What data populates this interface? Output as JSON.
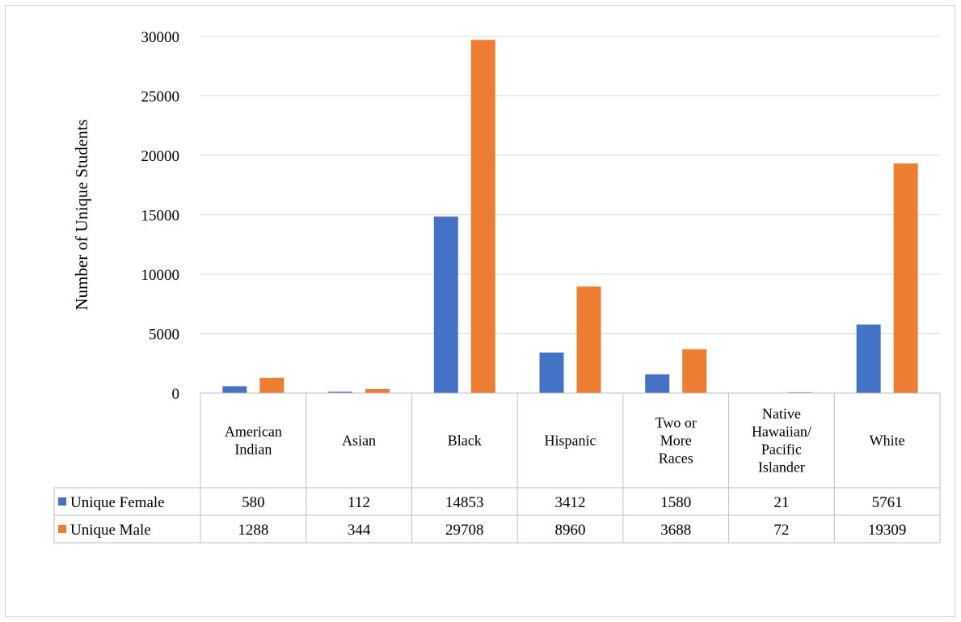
{
  "chart_data": {
    "type": "bar",
    "ylabel": "Number of Unique Students",
    "ylim": [
      0,
      30000
    ],
    "yticks": [
      "0",
      "5000",
      "10000",
      "15000",
      "20000",
      "25000",
      "30000"
    ],
    "grid": true,
    "legend_placement": "data-table",
    "categories": [
      [
        "American",
        "Indian"
      ],
      [
        "Asian"
      ],
      [
        "Black"
      ],
      [
        "Hispanic"
      ],
      [
        "Two or",
        "More",
        "Races"
      ],
      [
        "Native",
        "Hawaiian/",
        "Pacific",
        "Islander"
      ],
      [
        "White"
      ]
    ],
    "series": [
      {
        "name": "Unique Female",
        "color": "#4472C4",
        "values": [
          580,
          112,
          14853,
          3412,
          1580,
          21,
          5761
        ]
      },
      {
        "name": "Unique Male",
        "color": "#ED7D31",
        "values": [
          1288,
          344,
          29708,
          8960,
          3688,
          72,
          19309
        ]
      }
    ]
  }
}
